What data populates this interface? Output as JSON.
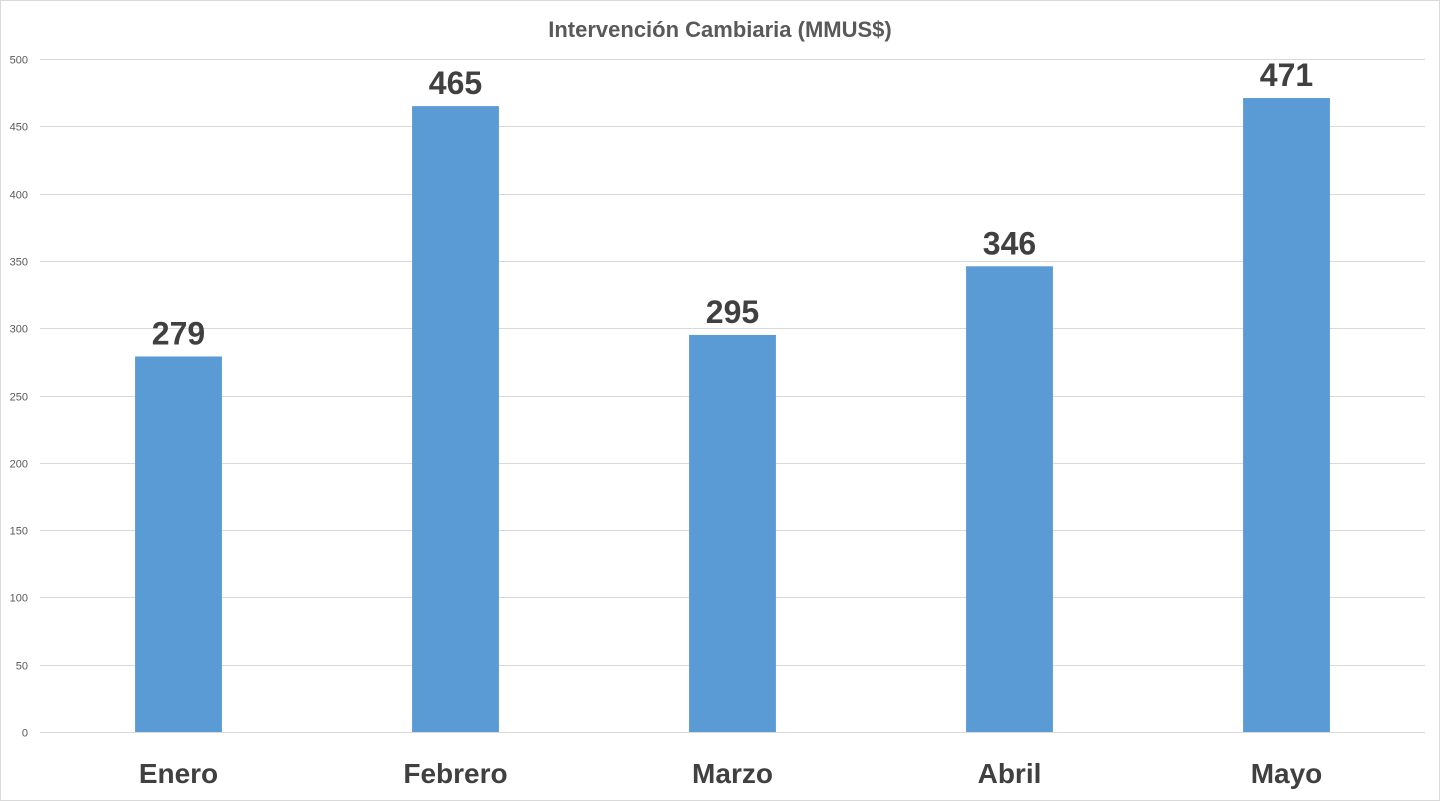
{
  "chart_data": {
    "type": "bar",
    "title": "Intervención Cambiaria (MMUS$)",
    "xlabel": "",
    "ylabel": "",
    "categories": [
      "Enero",
      "Febrero",
      "Marzo",
      "Abril",
      "Mayo"
    ],
    "series": [
      {
        "values": [
          279,
          465,
          295,
          346,
          471
        ],
        "color": "#5b9bd5"
      }
    ],
    "data_labels": [
      "279",
      "465",
      "295",
      "346",
      "471"
    ],
    "ylim": [
      0,
      500
    ],
    "yticks": [
      0,
      50,
      100,
      150,
      200,
      250,
      300,
      350,
      400,
      450,
      500
    ],
    "ytick_labels": [
      "0",
      "50",
      "100",
      "150",
      "200",
      "250",
      "300",
      "350",
      "400",
      "450",
      "500"
    ],
    "grid": true,
    "gridline_color": "#d9d9d9",
    "legend": "none"
  }
}
